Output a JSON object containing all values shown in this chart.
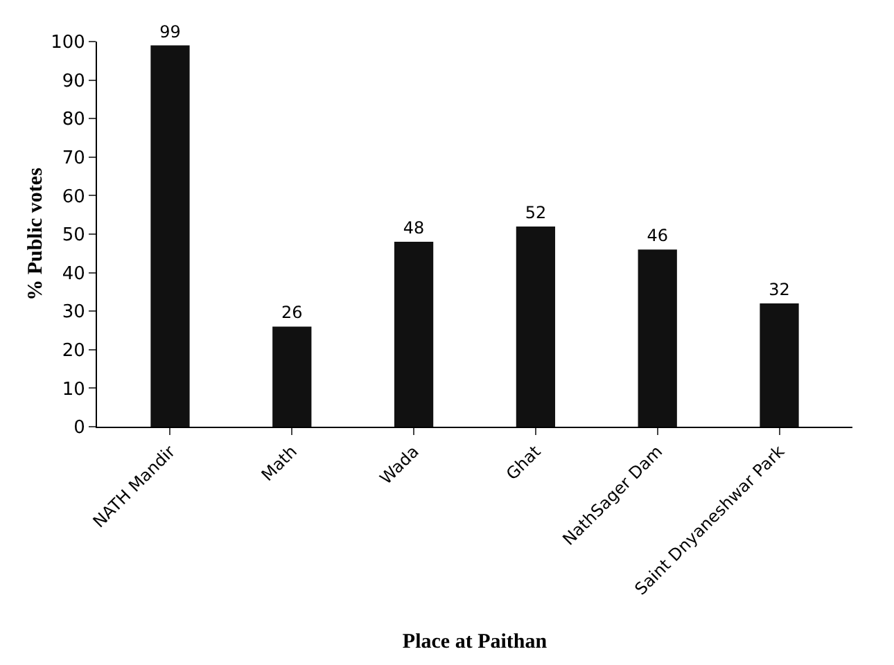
{
  "chart_data": {
    "type": "bar",
    "categories": [
      "NATH Mandir",
      "Math",
      "Wada",
      "Ghat",
      "NathSager Dam",
      "Saint Dnyaneshwar Park"
    ],
    "values": [
      99,
      26,
      48,
      52,
      46,
      32
    ],
    "color": "#111111",
    "xlabel": "Place at Paithan",
    "ylabel": "% Public votes",
    "ylim": [
      0,
      100
    ],
    "yticks": [
      0,
      10,
      20,
      30,
      40,
      50,
      60,
      70,
      80,
      90,
      100
    ],
    "data_labels": true
  }
}
